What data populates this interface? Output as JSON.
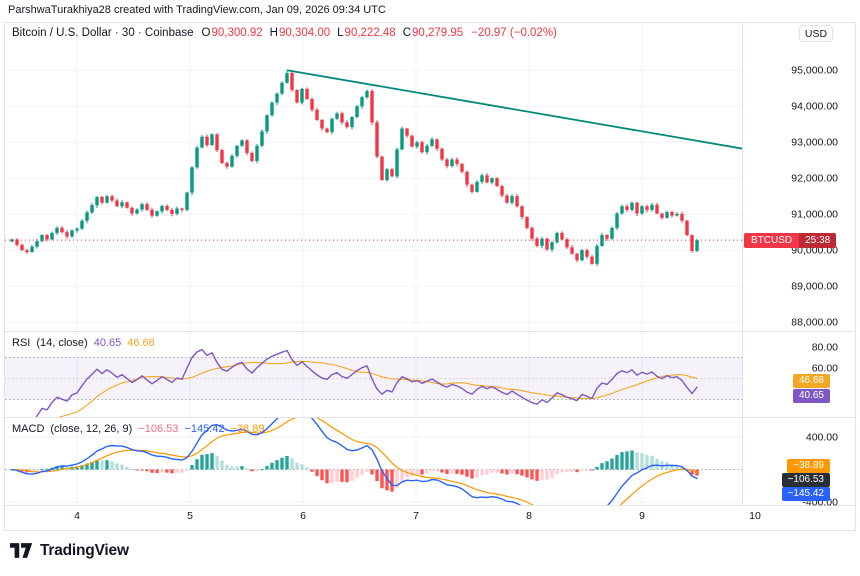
{
  "attribution": "ParshwaTurakhiya28 created with TradingView.com, Jan 09, 2026 09:34 UTC",
  "header": {
    "symbol_full": "Bitcoin / U.S. Dollar · 30 · Coinbase",
    "o_label": "O",
    "o": "90,300.92",
    "h_label": "H",
    "h": "90,304.00",
    "l_label": "L",
    "l": "90,222.48",
    "c_label": "C",
    "c": "90,279.95",
    "change": "−20.97 (−0.02%)",
    "currency_button": "USD"
  },
  "price_badge": {
    "symbol": "BTCUSD",
    "countdown": "25:38"
  },
  "rsi_pane": {
    "title": "RSI",
    "params": "(14, close)",
    "value": "40.65",
    "ma_value": "46.68"
  },
  "macd_pane": {
    "title": "MACD",
    "params": "(close, 12, 26, 9)",
    "hist_value": "−106.53",
    "macd_value": "−145.42",
    "signal_value": "−38.89"
  },
  "badges": {
    "rsi": "40.65",
    "rsi_ma": "46.68",
    "macd_signal": "−38.89",
    "macd_hist": "−106.53",
    "macd_macd": "−145.42"
  },
  "footer": {
    "brand": "TradingView"
  },
  "colors": {
    "up": "#089981",
    "down": "#F23645",
    "trendline": "#00897B",
    "rsi": "#7E57C2",
    "rsi_ma": "#F5A623",
    "rsi_band_fill": "rgba(126,87,194,0.08)",
    "macd": "#2962FF",
    "signal": "#FF9800",
    "hist_pos": "#26A69A",
    "hist_pos_weak": "#B2DFDB",
    "hist_neg": "#FF5252",
    "hist_neg_weak": "#FFCDD2",
    "grid": "#F0F3FA",
    "border": "#E0E3EB",
    "axis_text": "#131722",
    "level": "#787B86"
  },
  "chart_data": {
    "type": "candlestick",
    "title": "Bitcoin / U.S. Dollar, 30, Coinbase",
    "x_labels": [
      "4",
      "5",
      "6",
      "7",
      "8",
      "9",
      "10"
    ],
    "x_label_first_index": 13,
    "x_label_step_indices": 22.6,
    "x_unit": "day of Jan 2026",
    "price_ticks": [
      95000,
      94000,
      93000,
      92000,
      91000,
      90000,
      89000,
      88000
    ],
    "price_range_top": 95700,
    "last_price": 90279.95,
    "ohlc_last": {
      "o": 90300.92,
      "h": 90304.0,
      "l": 90222.48,
      "c": 90279.95,
      "change": -20.97,
      "change_pct": -0.02
    },
    "closes": [
      90300,
      90150,
      90000,
      89950,
      90100,
      90250,
      90420,
      90300,
      90480,
      90620,
      90500,
      90380,
      90550,
      90600,
      90820,
      91050,
      91250,
      91480,
      91320,
      91500,
      91380,
      91220,
      91330,
      91180,
      91020,
      91130,
      91280,
      91120,
      90960,
      91080,
      91230,
      91120,
      91010,
      91160,
      91120,
      91600,
      92300,
      92850,
      93150,
      92920,
      93220,
      92780,
      92420,
      92320,
      92620,
      92900,
      93050,
      92700,
      92480,
      92900,
      93300,
      93750,
      94100,
      94350,
      94650,
      94920,
      94450,
      94100,
      94480,
      94200,
      93900,
      93620,
      93380,
      93280,
      93650,
      93800,
      93550,
      93420,
      93700,
      94000,
      94250,
      94420,
      93550,
      92600,
      91950,
      92250,
      92050,
      92800,
      93380,
      93180,
      92880,
      93000,
      92720,
      92900,
      93080,
      92820,
      92520,
      92340,
      92520,
      92400,
      92180,
      91820,
      91620,
      91900,
      92080,
      91880,
      92000,
      91780,
      91520,
      91320,
      91500,
      91220,
      90920,
      90620,
      90320,
      90120,
      90320,
      90020,
      90220,
      90480,
      90300,
      90080,
      89900,
      89720,
      90000,
      89820,
      89620,
      90120,
      90420,
      90320,
      90620,
      91020,
      91220,
      91120,
      91320,
      91020,
      91220,
      91120,
      91260,
      91020,
      90900,
      91060,
      90960,
      91010,
      90820,
      90420,
      89980,
      90280
    ],
    "trendline": {
      "from_index": 55,
      "from_price": 95000,
      "to_index": 157,
      "to_price": 92560
    },
    "rsi": {
      "period": 14,
      "source": "close",
      "last": 40.65,
      "ma_last": 46.68,
      "ticks": [
        80,
        60
      ],
      "levels": [
        70,
        50,
        30
      ]
    },
    "macd": {
      "fast": 12,
      "slow": 26,
      "smoothing": 9,
      "last_hist": -106.53,
      "last_macd": -145.42,
      "last_signal": -38.89,
      "ticks": [
        400,
        -400
      ]
    }
  }
}
